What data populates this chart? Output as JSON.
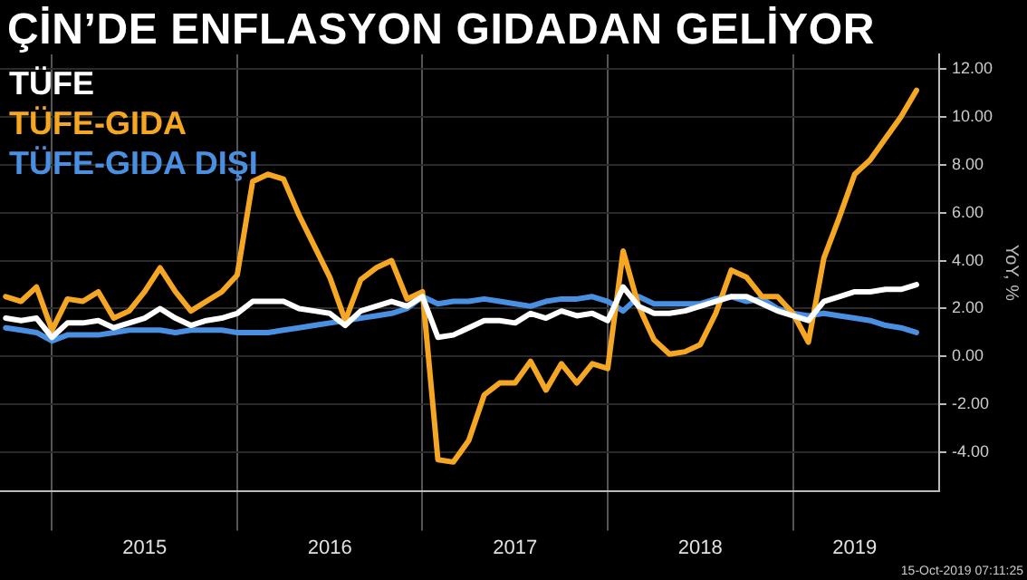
{
  "chart_data": {
    "type": "line",
    "title": "ÇİN’DE ENFLASYON GIDADAN GELİYOR",
    "ylabel": "YoY, %",
    "x": [
      "2014-10",
      "2014-11",
      "2014-12",
      "2015-01",
      "2015-02",
      "2015-03",
      "2015-04",
      "2015-05",
      "2015-06",
      "2015-07",
      "2015-08",
      "2015-09",
      "2015-10",
      "2015-11",
      "2015-12",
      "2016-01",
      "2016-02",
      "2016-03",
      "2016-04",
      "2016-05",
      "2016-06",
      "2016-07",
      "2016-08",
      "2016-09",
      "2016-10",
      "2016-11",
      "2016-12",
      "2017-01",
      "2017-02",
      "2017-03",
      "2017-04",
      "2017-05",
      "2017-06",
      "2017-07",
      "2017-08",
      "2017-09",
      "2017-10",
      "2017-11",
      "2017-12",
      "2018-01",
      "2018-02",
      "2018-03",
      "2018-04",
      "2018-05",
      "2018-06",
      "2018-07",
      "2018-08",
      "2018-09",
      "2018-10",
      "2018-11",
      "2018-12",
      "2019-01",
      "2019-02",
      "2019-03",
      "2019-04",
      "2019-05",
      "2019-06",
      "2019-07",
      "2019-08",
      "2019-09"
    ],
    "series": [
      {
        "name": "TÜFE",
        "color": "#ffffff",
        "values": [
          1.6,
          1.5,
          1.6,
          0.8,
          1.4,
          1.4,
          1.5,
          1.2,
          1.4,
          1.6,
          2.0,
          1.6,
          1.3,
          1.5,
          1.6,
          1.8,
          2.3,
          2.3,
          2.3,
          2.0,
          1.9,
          1.8,
          1.3,
          1.9,
          2.1,
          2.3,
          2.1,
          2.5,
          0.8,
          0.9,
          1.2,
          1.5,
          1.5,
          1.4,
          1.8,
          1.6,
          1.9,
          1.7,
          1.8,
          1.5,
          2.9,
          2.1,
          1.8,
          1.8,
          1.9,
          2.1,
          2.3,
          2.5,
          2.5,
          2.2,
          1.9,
          1.7,
          1.5,
          2.3,
          2.5,
          2.7,
          2.7,
          2.8,
          2.8,
          3.0
        ]
      },
      {
        "name": "TÜFE-GIDA",
        "color": "#f5a623",
        "values": [
          2.5,
          2.3,
          2.9,
          1.1,
          2.4,
          2.3,
          2.7,
          1.6,
          1.9,
          2.7,
          3.7,
          2.7,
          1.9,
          2.3,
          2.7,
          3.4,
          7.3,
          7.6,
          7.4,
          5.9,
          4.6,
          3.3,
          1.5,
          3.2,
          3.7,
          4.0,
          2.4,
          2.7,
          -4.3,
          -4.4,
          -3.5,
          -1.6,
          -1.1,
          -1.1,
          -0.2,
          -1.4,
          -0.3,
          -1.1,
          -0.3,
          -0.5,
          4.4,
          2.1,
          0.7,
          0.1,
          0.2,
          0.5,
          1.8,
          3.6,
          3.3,
          2.5,
          2.5,
          1.8,
          0.6,
          4.1,
          5.8,
          7.6,
          8.2,
          9.1,
          10.0,
          11.1
        ]
      },
      {
        "name": "TÜFE-GIDA DIŞI",
        "color": "#4a90e2",
        "values": [
          1.2,
          1.1,
          1.0,
          0.65,
          0.9,
          0.9,
          0.9,
          1.0,
          1.1,
          1.1,
          1.1,
          1.0,
          1.1,
          1.1,
          1.1,
          1.0,
          1.0,
          1.0,
          1.1,
          1.2,
          1.3,
          1.4,
          1.5,
          1.6,
          1.7,
          1.8,
          2.0,
          2.5,
          2.2,
          2.3,
          2.3,
          2.4,
          2.3,
          2.2,
          2.1,
          2.3,
          2.4,
          2.4,
          2.5,
          2.3,
          1.9,
          2.5,
          2.2,
          2.2,
          2.2,
          2.2,
          2.4,
          2.5,
          2.3,
          2.4,
          2.0,
          1.8,
          1.7,
          1.8,
          1.7,
          1.6,
          1.5,
          1.3,
          1.2,
          1.0
        ]
      }
    ],
    "xlim": [
      "2014-09-20",
      "2019-10-15"
    ],
    "xticks": [
      {
        "value": "2015-01",
        "label": null
      },
      {
        "value": "2015-07",
        "label": "2015"
      },
      {
        "value": "2016-01",
        "label": null
      },
      {
        "value": "2016-07",
        "label": "2016"
      },
      {
        "value": "2017-01",
        "label": null
      },
      {
        "value": "2017-07",
        "label": "2017"
      },
      {
        "value": "2018-01",
        "label": null
      },
      {
        "value": "2018-07",
        "label": "2018"
      },
      {
        "value": "2019-01",
        "label": null
      },
      {
        "value": "2019-05",
        "label": "2019"
      }
    ],
    "ylim": [
      -5.6,
      12.6
    ],
    "yticks": [
      {
        "value": -4,
        "label": "-4.00"
      },
      {
        "value": -2,
        "label": "-2.00"
      },
      {
        "value": 0,
        "label": "0.00"
      },
      {
        "value": 2,
        "label": "2.00"
      },
      {
        "value": 4,
        "label": "4.00"
      },
      {
        "value": 6,
        "label": "6.00"
      },
      {
        "value": 8,
        "label": "8.00"
      },
      {
        "value": 10,
        "label": "10.00"
      },
      {
        "value": 12,
        "label": "12.00"
      }
    ],
    "grid": true,
    "legend": "top left",
    "marker": "none",
    "line_style": "solid",
    "annotations": [
      "15-Oct-2019 07:11:25"
    ]
  }
}
